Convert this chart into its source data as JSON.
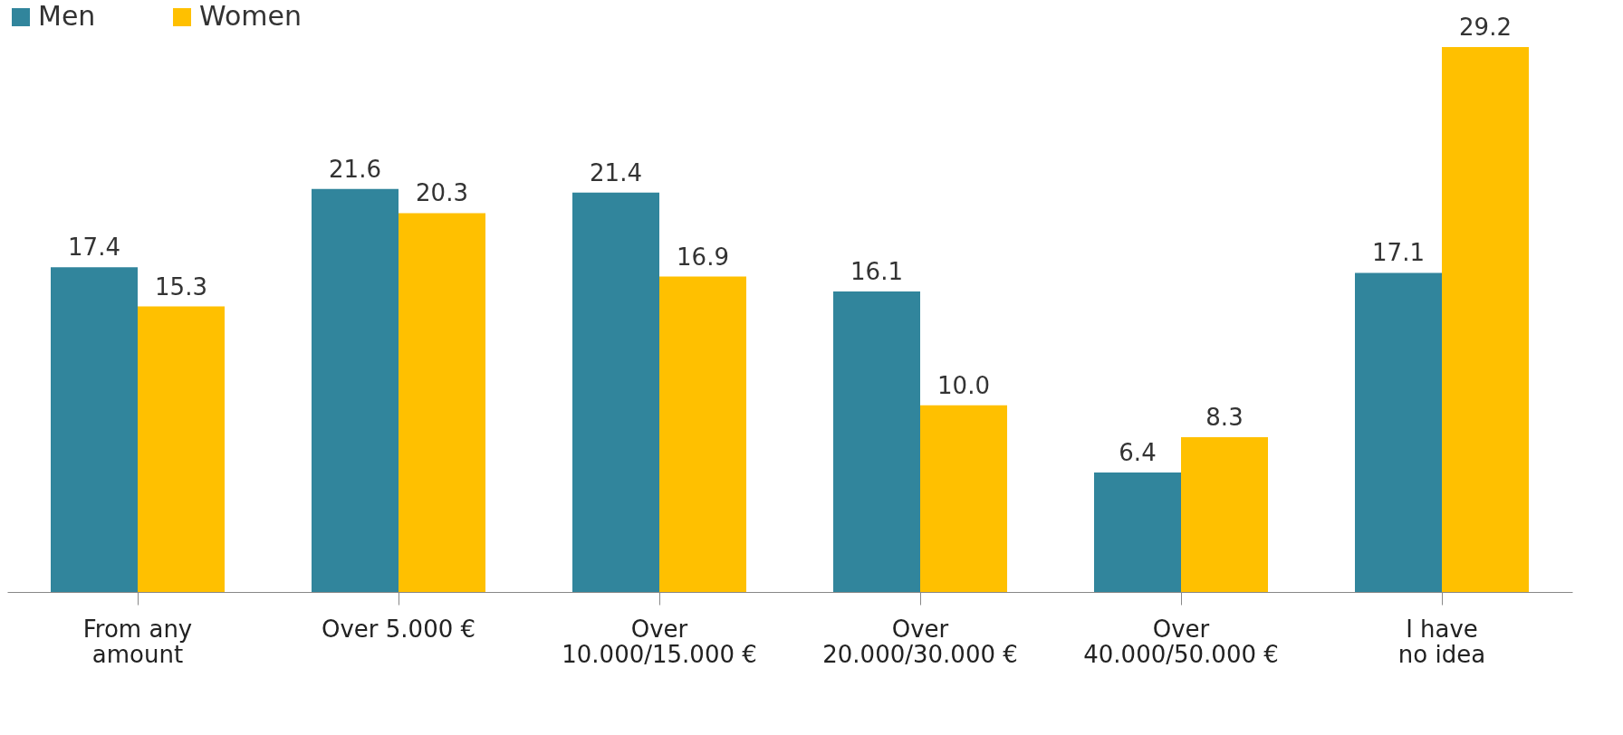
{
  "chart_data": {
    "type": "bar",
    "categories": [
      "From any amount",
      "Over 5.000 €",
      "Over 10.000/15.000 €",
      "Over 20.000/30.000 €",
      "Over 40.000/50.000 €",
      "I have no idea"
    ],
    "series": [
      {
        "name": "Men",
        "color": "#31859c",
        "values": [
          17.4,
          21.6,
          21.4,
          16.1,
          6.4,
          17.1
        ],
        "value_labels": [
          "17.4",
          "21.6",
          "21.4",
          "16.1",
          "6.4",
          "17.1"
        ]
      },
      {
        "name": "Women",
        "color": "#ffc000",
        "values": [
          15.3,
          20.3,
          16.9,
          10.0,
          8.3,
          29.2
        ],
        "value_labels": [
          "15.3",
          "20.3",
          "16.9",
          "10.0",
          "8.3",
          "29.2"
        ]
      }
    ],
    "legend": "top",
    "tick_labels": "x",
    "grid": false
  }
}
